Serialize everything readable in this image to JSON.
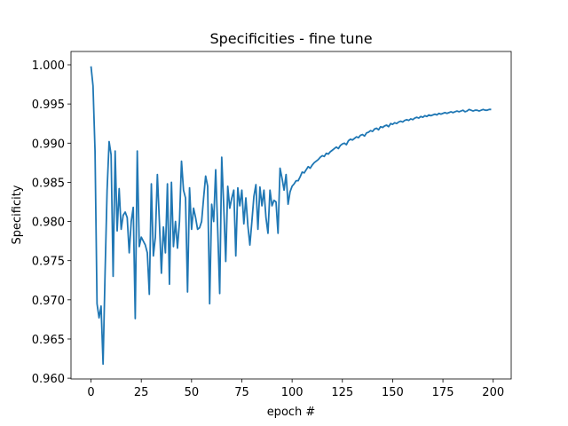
{
  "chart_data": {
    "type": "line",
    "title": "Specificities - fine tune",
    "xlabel": "epoch #",
    "ylabel": "Specificity",
    "color": "#1f77b4",
    "x": [
      0,
      1,
      2,
      3,
      4,
      5,
      6,
      7,
      8,
      9,
      10,
      11,
      12,
      13,
      14,
      15,
      16,
      17,
      18,
      19,
      20,
      21,
      22,
      23,
      24,
      25,
      26,
      27,
      28,
      29,
      30,
      31,
      32,
      33,
      34,
      35,
      36,
      37,
      38,
      39,
      40,
      41,
      42,
      43,
      44,
      45,
      46,
      47,
      48,
      49,
      50,
      51,
      52,
      53,
      54,
      55,
      56,
      57,
      58,
      59,
      60,
      61,
      62,
      63,
      64,
      65,
      66,
      67,
      68,
      69,
      70,
      71,
      72,
      73,
      74,
      75,
      76,
      77,
      78,
      79,
      80,
      81,
      82,
      83,
      84,
      85,
      86,
      87,
      88,
      89,
      90,
      91,
      92,
      93,
      94,
      95,
      96,
      97,
      98,
      99,
      100,
      101,
      102,
      103,
      104,
      105,
      106,
      107,
      108,
      109,
      110,
      111,
      112,
      113,
      114,
      115,
      116,
      117,
      118,
      119,
      120,
      121,
      122,
      123,
      124,
      125,
      126,
      127,
      128,
      129,
      130,
      131,
      132,
      133,
      134,
      135,
      136,
      137,
      138,
      139,
      140,
      141,
      142,
      143,
      144,
      145,
      146,
      147,
      148,
      149,
      150,
      151,
      152,
      153,
      154,
      155,
      156,
      157,
      158,
      159,
      160,
      161,
      162,
      163,
      164,
      165,
      166,
      167,
      168,
      169,
      170,
      171,
      172,
      173,
      174,
      175,
      176,
      177,
      178,
      179,
      180,
      181,
      182,
      183,
      184,
      185,
      186,
      187,
      188,
      189,
      190,
      191,
      192,
      193,
      194,
      195,
      196,
      197,
      198,
      199
    ],
    "values": [
      0.9998,
      0.9973,
      0.989,
      0.9695,
      0.9677,
      0.9692,
      0.9618,
      0.9735,
      0.984,
      0.9902,
      0.9885,
      0.973,
      0.989,
      0.9788,
      0.9842,
      0.979,
      0.9808,
      0.9812,
      0.9805,
      0.976,
      0.98,
      0.9818,
      0.9676,
      0.989,
      0.9768,
      0.978,
      0.9775,
      0.977,
      0.976,
      0.9707,
      0.9848,
      0.9756,
      0.978,
      0.986,
      0.98,
      0.9734,
      0.9793,
      0.976,
      0.9848,
      0.972,
      0.985,
      0.9768,
      0.98,
      0.9766,
      0.98,
      0.9877,
      0.984,
      0.983,
      0.971,
      0.9843,
      0.979,
      0.9817,
      0.9805,
      0.979,
      0.9792,
      0.98,
      0.983,
      0.9858,
      0.9845,
      0.9695,
      0.9822,
      0.98,
      0.9866,
      0.979,
      0.9708,
      0.9882,
      0.982,
      0.9749,
      0.9845,
      0.9817,
      0.983,
      0.984,
      0.9756,
      0.9843,
      0.982,
      0.984,
      0.9797,
      0.983,
      0.9795,
      0.977,
      0.98,
      0.9832,
      0.9847,
      0.979,
      0.9844,
      0.982,
      0.984,
      0.9805,
      0.9785,
      0.984,
      0.982,
      0.9827,
      0.9825,
      0.9785,
      0.9868,
      0.9855,
      0.984,
      0.986,
      0.9822,
      0.9838,
      0.9845,
      0.9848,
      0.9852,
      0.9852,
      0.9857,
      0.9863,
      0.9862,
      0.9866,
      0.987,
      0.9868,
      0.9872,
      0.9875,
      0.9877,
      0.9879,
      0.9882,
      0.9884,
      0.9883,
      0.9887,
      0.9886,
      0.9889,
      0.9891,
      0.9893,
      0.9895,
      0.9893,
      0.9897,
      0.9899,
      0.99,
      0.9898,
      0.9903,
      0.9905,
      0.9904,
      0.9906,
      0.9908,
      0.9907,
      0.991,
      0.9911,
      0.9909,
      0.9913,
      0.9914,
      0.9916,
      0.9915,
      0.9918,
      0.9919,
      0.9917,
      0.9921,
      0.992,
      0.9922,
      0.9923,
      0.9921,
      0.9925,
      0.9924,
      0.9926,
      0.9925,
      0.9927,
      0.9928,
      0.9927,
      0.9929,
      0.993,
      0.9929,
      0.9931,
      0.993,
      0.9932,
      0.9933,
      0.9932,
      0.9934,
      0.9933,
      0.9935,
      0.9934,
      0.9936,
      0.9935,
      0.9936,
      0.9937,
      0.9936,
      0.9938,
      0.9937,
      0.9938,
      0.9939,
      0.9938,
      0.9939,
      0.994,
      0.9939,
      0.994,
      0.9941,
      0.994,
      0.9941,
      0.9942,
      0.994,
      0.9941,
      0.9943,
      0.9942,
      0.9941,
      0.9942,
      0.9942,
      0.9941,
      0.9942,
      0.9943,
      0.9942,
      0.9942,
      0.9943,
      0.9943
    ],
    "xlim": [
      -9.95,
      208.95
    ],
    "xticks": [
      0,
      25,
      50,
      75,
      100,
      125,
      150,
      175,
      200
    ],
    "ylim": [
      0.9599,
      1.0017
    ],
    "yticks": [
      {
        "value": 0.96,
        "label": "0.960"
      },
      0.965,
      {
        "value": 0.97,
        "label": "0.970"
      },
      0.975,
      {
        "value": 0.98,
        "label": "0.980"
      },
      0.985,
      {
        "value": 0.99,
        "label": "0.990"
      },
      0.995,
      {
        "value": 1.0,
        "label": "1.000"
      }
    ]
  }
}
